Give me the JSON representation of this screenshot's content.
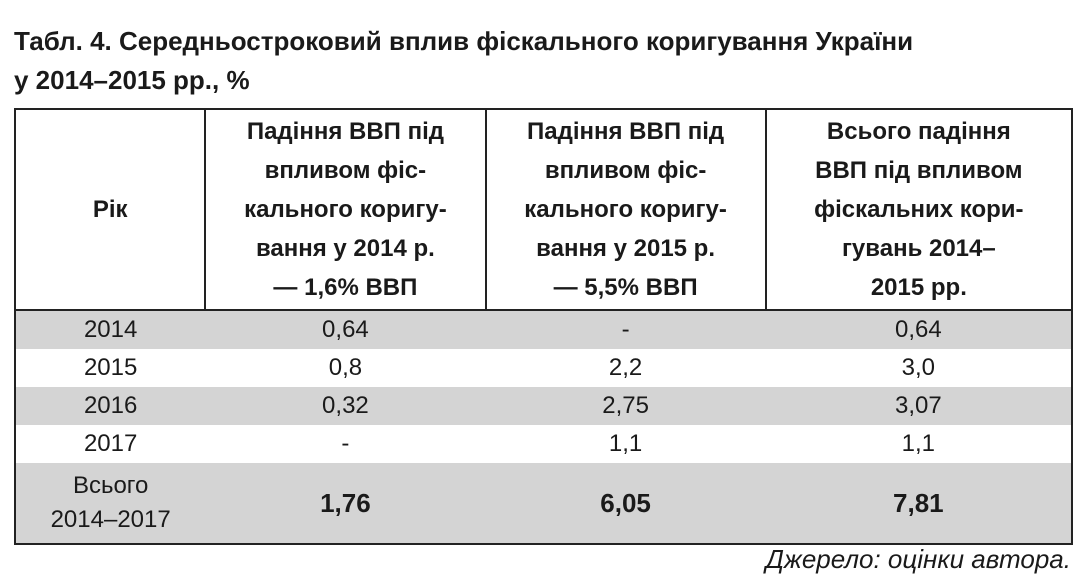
{
  "title": [
    "Табл. 4. Середньостроковий вплив фіскального коригування України",
    "у 2014–2015 рр., %"
  ],
  "table": {
    "header": [
      [
        "Рік"
      ],
      [
        "Падіння ВВП під",
        "впливом фіс-",
        "кального коригу-",
        "вання у 2014 р.",
        "— 1,6% ВВП"
      ],
      [
        "Падіння ВВП під",
        "впливом фіс-",
        "кального коригу-",
        "вання у 2015 р.",
        "— 5,5% ВВП"
      ],
      [
        "Всього падіння",
        "ВВП під впливом",
        "фіскальних кори-",
        "гувань 2014–",
        "2015 рр."
      ]
    ],
    "rows": [
      [
        [
          "2014"
        ],
        "0,64",
        "-",
        "0,64"
      ],
      [
        [
          "2015"
        ],
        "0,8",
        "2,2",
        "3,0"
      ],
      [
        [
          "2016"
        ],
        "0,32",
        "2,75",
        "3,07"
      ],
      [
        [
          "2017"
        ],
        "-",
        "1,1",
        "1,1"
      ],
      [
        [
          "Всього",
          "2014–2017"
        ],
        "1,76",
        "6,05",
        "7,81"
      ]
    ]
  },
  "source": "Джерело: оцінки автора."
}
